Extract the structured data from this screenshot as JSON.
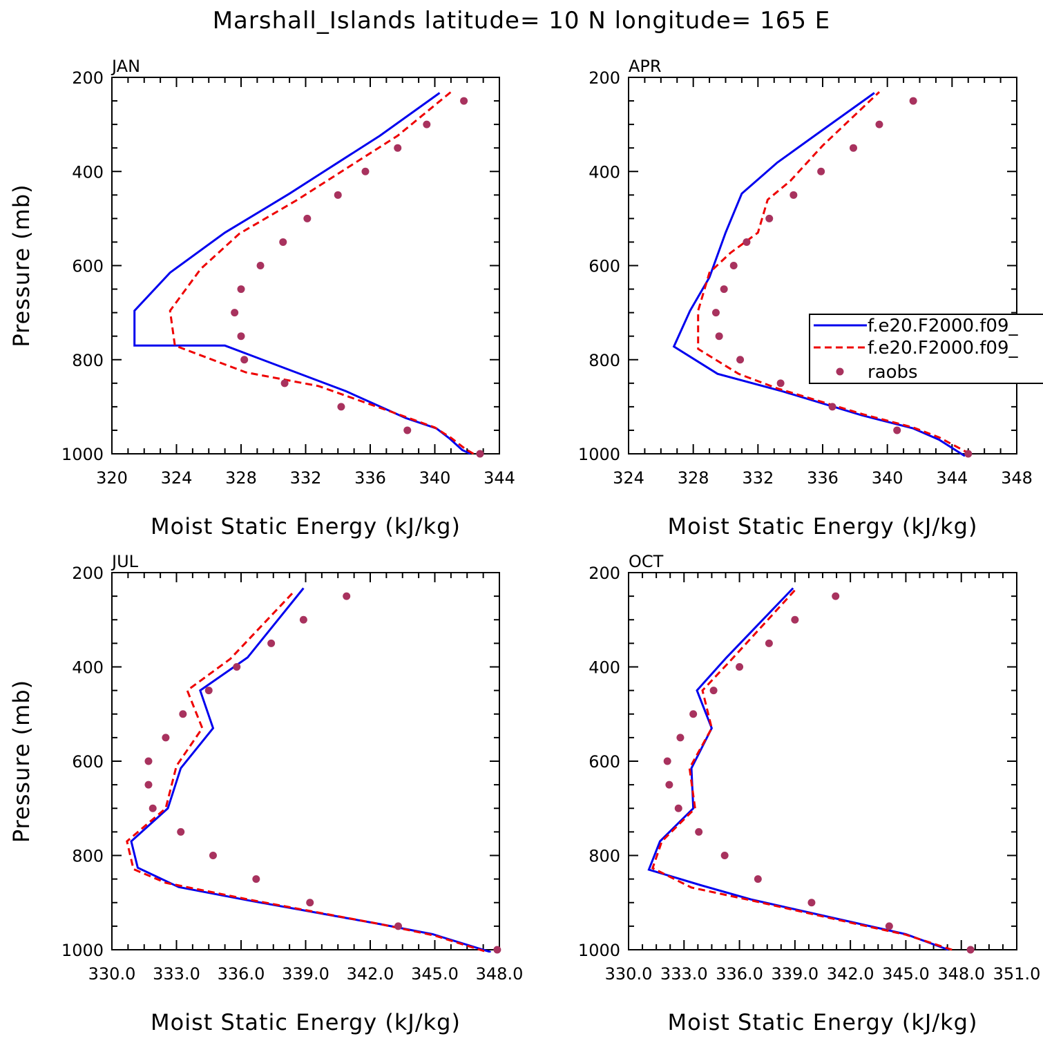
{
  "title": "Marshall_Islands  latitude= 10 N longitude= 165 E",
  "colors": {
    "model1": "#0000ee",
    "model2": "#ee0000",
    "raobs": "#a8325e"
  },
  "legend": [
    {
      "label": "f.e20.F2000.f09_",
      "style": "solid",
      "color": "#0000ee"
    },
    {
      "label": "f.e20.F2000.f09_",
      "style": "dashed",
      "color": "#ee0000"
    },
    {
      "label": "raobs",
      "style": "marker",
      "color": "#a8325e"
    }
  ],
  "chart_data": [
    {
      "type": "line",
      "panel_title": "JAN",
      "xlabel": "Moist Static Energy (kJ/kg)",
      "ylabel": "Pressure (mb)",
      "xlim": [
        320,
        344
      ],
      "ylim": [
        1000,
        200
      ],
      "xticks": [
        320,
        324,
        328,
        332,
        336,
        340,
        344
      ],
      "xtick_labels": [
        "320",
        "324",
        "328",
        "332",
        "336",
        "340",
        "344"
      ],
      "yticks": [
        200,
        400,
        600,
        800,
        1000
      ],
      "series": [
        {
          "style": "solid",
          "color": "#0000ee",
          "points": [
            [
              342.2,
              1000
            ],
            [
              341.7,
              992
            ],
            [
              340.9,
              967
            ],
            [
              340.1,
              946
            ],
            [
              338.2,
              924
            ],
            [
              334.5,
              867
            ],
            [
              327.0,
              770
            ],
            [
              321.4,
              770
            ],
            [
              321.4,
              696
            ],
            [
              323.6,
              615
            ],
            [
              327.0,
              530
            ],
            [
              331.0,
              447
            ],
            [
              334.0,
              381
            ],
            [
              336.6,
              324
            ],
            [
              340.3,
              233
            ]
          ]
        },
        {
          "style": "dashed",
          "color": "#ee0000",
          "points": [
            [
              342.4,
              1000
            ],
            [
              341.9,
              990
            ],
            [
              341.0,
              966
            ],
            [
              340.0,
              944
            ],
            [
              337.9,
              918
            ],
            [
              332.8,
              856
            ],
            [
              328.3,
              827
            ],
            [
              323.9,
              770
            ],
            [
              323.6,
              696
            ],
            [
              325.5,
              607
            ],
            [
              327.9,
              532
            ],
            [
              331.5,
              460
            ],
            [
              334.5,
              394
            ],
            [
              337.7,
              324
            ],
            [
              341.0,
              231
            ]
          ]
        },
        {
          "style": "marker",
          "color": "#a8325e",
          "points": [
            [
              342.8,
              1000
            ],
            [
              338.3,
              950
            ],
            [
              334.2,
              900
            ],
            [
              330.7,
              850
            ],
            [
              328.2,
              800
            ],
            [
              328.0,
              750
            ],
            [
              327.6,
              700
            ],
            [
              328.0,
              650
            ],
            [
              329.2,
              600
            ],
            [
              330.6,
              550
            ],
            [
              332.1,
              500
            ],
            [
              334.0,
              450
            ],
            [
              335.7,
              400
            ],
            [
              337.7,
              350
            ],
            [
              339.5,
              300
            ],
            [
              341.8,
              250
            ]
          ]
        }
      ]
    },
    {
      "type": "line",
      "panel_title": "APR",
      "xlabel": "Moist Static Energy (kJ/kg)",
      "ylabel": "",
      "xlim": [
        324,
        348
      ],
      "ylim": [
        1000,
        200
      ],
      "xticks": [
        324,
        328,
        332,
        336,
        340,
        344,
        348
      ],
      "xtick_labels": [
        "324",
        "328",
        "332",
        "336",
        "340",
        "344",
        "348"
      ],
      "yticks": [
        200,
        400,
        600,
        800,
        1000
      ],
      "series": [
        {
          "style": "solid",
          "color": "#0000ee",
          "points": [
            [
              344.8,
              1005
            ],
            [
              343.2,
              970
            ],
            [
              341.6,
              946
            ],
            [
              338.4,
              918
            ],
            [
              333.5,
              867
            ],
            [
              329.5,
              830
            ],
            [
              326.8,
              772
            ],
            [
              327.8,
              696
            ],
            [
              329.0,
              625
            ],
            [
              330.0,
              530
            ],
            [
              331.0,
              447
            ],
            [
              333.2,
              381
            ],
            [
              335.5,
              324
            ],
            [
              339.2,
              233
            ]
          ]
        },
        {
          "style": "dashed",
          "color": "#ee0000",
          "points": [
            [
              345.1,
              1000
            ],
            [
              343.2,
              965
            ],
            [
              341.6,
              944
            ],
            [
              338.5,
              916
            ],
            [
              333.2,
              861
            ],
            [
              330.8,
              830
            ],
            [
              328.3,
              777
            ],
            [
              328.3,
              696
            ],
            [
              329.0,
              615
            ],
            [
              330.3,
              573
            ],
            [
              332.0,
              530
            ],
            [
              332.6,
              460
            ],
            [
              334.0,
              420
            ],
            [
              336.0,
              345
            ],
            [
              339.5,
              231
            ]
          ]
        },
        {
          "style": "marker",
          "color": "#a8325e",
          "points": [
            [
              345.0,
              1000
            ],
            [
              340.6,
              950
            ],
            [
              336.6,
              900
            ],
            [
              333.4,
              850
            ],
            [
              330.9,
              800
            ],
            [
              329.6,
              750
            ],
            [
              329.4,
              700
            ],
            [
              329.9,
              650
            ],
            [
              330.5,
              600
            ],
            [
              331.3,
              550
            ],
            [
              332.7,
              500
            ],
            [
              334.2,
              450
            ],
            [
              335.9,
              400
            ],
            [
              337.9,
              350
            ],
            [
              339.5,
              300
            ],
            [
              341.6,
              250
            ]
          ]
        }
      ]
    },
    {
      "type": "line",
      "panel_title": "JUL",
      "xlabel": "Moist Static Energy (kJ/kg)",
      "ylabel": "Pressure (mb)",
      "xlim": [
        330,
        348
      ],
      "ylim": [
        1000,
        200
      ],
      "xticks": [
        330,
        333,
        336,
        339,
        342,
        345,
        348
      ],
      "xtick_labels": [
        "330.0",
        "333.0",
        "336.0",
        "339.0",
        "342.0",
        "345.0",
        "348.0"
      ],
      "yticks": [
        200,
        400,
        600,
        800,
        1000
      ],
      "series": [
        {
          "style": "solid",
          "color": "#0000ee",
          "points": [
            [
              347.6,
              1005
            ],
            [
              344.9,
              967
            ],
            [
              342.5,
              946
            ],
            [
              336.3,
              895
            ],
            [
              333.1,
              867
            ],
            [
              331.2,
              826
            ],
            [
              330.9,
              770
            ],
            [
              332.6,
              700
            ],
            [
              333.2,
              615
            ],
            [
              334.7,
              530
            ],
            [
              334.1,
              450
            ],
            [
              336.3,
              380
            ],
            [
              338.9,
              233
            ]
          ]
        },
        {
          "style": "dashed",
          "color": "#ee0000",
          "points": [
            [
              347.3,
              1003
            ],
            [
              345.0,
              970
            ],
            [
              342.4,
              945
            ],
            [
              336.3,
              893
            ],
            [
              332.5,
              858
            ],
            [
              331.0,
              829
            ],
            [
              330.7,
              770
            ],
            [
              332.5,
              700
            ],
            [
              333.0,
              610
            ],
            [
              334.2,
              530
            ],
            [
              333.5,
              450
            ],
            [
              335.5,
              383
            ],
            [
              338.4,
              243
            ]
          ]
        },
        {
          "style": "marker",
          "color": "#a8325e",
          "points": [
            [
              347.9,
              1000
            ],
            [
              343.3,
              950
            ],
            [
              339.2,
              900
            ],
            [
              336.7,
              850
            ],
            [
              334.7,
              800
            ],
            [
              333.2,
              750
            ],
            [
              331.9,
              700
            ],
            [
              331.7,
              650
            ],
            [
              331.7,
              600
            ],
            [
              332.5,
              550
            ],
            [
              333.3,
              500
            ],
            [
              334.5,
              450
            ],
            [
              335.8,
              400
            ],
            [
              337.4,
              350
            ],
            [
              338.9,
              300
            ],
            [
              340.9,
              250
            ]
          ]
        }
      ]
    },
    {
      "type": "line",
      "panel_title": "OCT",
      "xlabel": "Moist Static Energy (kJ/kg)",
      "ylabel": "",
      "xlim": [
        330.0,
        351.0
      ],
      "ylim": [
        1000,
        200
      ],
      "xticks": [
        330,
        333,
        336,
        339,
        342,
        345,
        348,
        351
      ],
      "xtick_labels": [
        "330.0",
        "333.0",
        "336.0",
        "339.0",
        "342.0",
        "345.0",
        "348.0",
        "351.0"
      ],
      "yticks": [
        200,
        400,
        600,
        800,
        1000
      ],
      "series": [
        {
          "style": "solid",
          "color": "#0000ee",
          "points": [
            [
              347.3,
              1000
            ],
            [
              345.0,
              967
            ],
            [
              342.5,
              945
            ],
            [
              336.6,
              893
            ],
            [
              333.9,
              863
            ],
            [
              331.1,
              830
            ],
            [
              331.7,
              770
            ],
            [
              333.5,
              700
            ],
            [
              333.4,
              615
            ],
            [
              334.5,
              530
            ],
            [
              333.7,
              450
            ],
            [
              335.3,
              380
            ],
            [
              338.9,
              233
            ]
          ]
        },
        {
          "style": "dashed",
          "color": "#ee0000",
          "points": [
            [
              347.5,
              1000
            ],
            [
              345.0,
              968
            ],
            [
              342.3,
              945
            ],
            [
              336.6,
              895
            ],
            [
              333.4,
              868
            ],
            [
              331.3,
              827
            ],
            [
              331.8,
              770
            ],
            [
              333.6,
              700
            ],
            [
              333.3,
              615
            ],
            [
              334.5,
              530
            ],
            [
              334.0,
              450
            ],
            [
              335.6,
              383
            ],
            [
              339.1,
              233
            ]
          ]
        },
        {
          "style": "marker",
          "color": "#a8325e",
          "points": [
            [
              348.5,
              1000
            ],
            [
              344.1,
              950
            ],
            [
              339.9,
              900
            ],
            [
              337.0,
              850
            ],
            [
              335.2,
              800
            ],
            [
              333.8,
              750
            ],
            [
              332.7,
              700
            ],
            [
              332.2,
              650
            ],
            [
              332.1,
              600
            ],
            [
              332.8,
              550
            ],
            [
              333.5,
              500
            ],
            [
              334.6,
              450
            ],
            [
              336.0,
              400
            ],
            [
              337.6,
              350
            ],
            [
              339.0,
              300
            ],
            [
              341.2,
              250
            ]
          ]
        }
      ]
    }
  ]
}
